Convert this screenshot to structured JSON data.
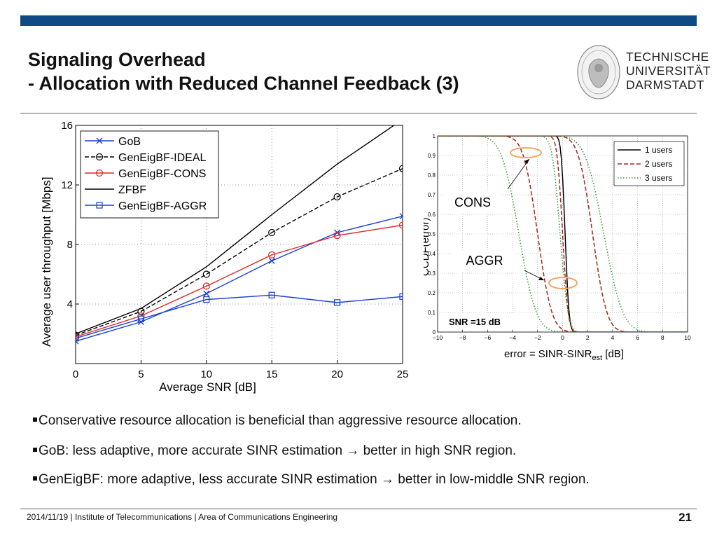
{
  "header": {
    "title_line1": "Signaling Overhead",
    "title_line2": "- Allocation with Reduced Channel Feedback (3)"
  },
  "logo": {
    "line1": "TECHNISCHE",
    "line2": "UNIVERSITÄT",
    "line3": "DARMSTADT"
  },
  "colors": {
    "brand_bar": "#0d4a86",
    "blue": "#1a3fd6",
    "red": "#e32626",
    "black": "#000000",
    "dark_red": "#b02020",
    "green": "#2a9a2a",
    "circle": "#f0a860"
  },
  "chart_data": [
    {
      "type": "line",
      "xlabel": "Average SNR [dB]",
      "ylabel": "Average user throughput [Mbps]",
      "x": [
        0,
        5,
        10,
        15,
        20,
        25
      ],
      "xticks": [
        "0",
        "5",
        "10",
        "15",
        "20",
        "25"
      ],
      "yticks": [
        "4",
        "8",
        "12",
        "16"
      ],
      "xlim": [
        0,
        25
      ],
      "ylim": [
        0,
        16
      ],
      "grid": true,
      "legend_position": "top-left",
      "series": [
        {
          "name": "GoB",
          "color": "#1a3fd6",
          "marker": "x",
          "dash": "solid",
          "values": [
            1.5,
            2.8,
            4.7,
            6.9,
            8.8,
            9.9
          ]
        },
        {
          "name": "GenEigBF-IDEAL",
          "color": "#000000",
          "marker": "o",
          "dash": "dashed",
          "values": [
            1.9,
            3.5,
            6.0,
            8.8,
            11.2,
            13.1
          ]
        },
        {
          "name": "GenEigBF-CONS",
          "color": "#e32626",
          "marker": "o",
          "dash": "solid",
          "values": [
            1.8,
            3.2,
            5.2,
            7.3,
            8.6,
            9.3
          ]
        },
        {
          "name": "ZFBF",
          "color": "#000000",
          "marker": "none",
          "dash": "solid",
          "values": [
            2.0,
            3.7,
            6.5,
            10.0,
            13.4,
            16.4
          ]
        },
        {
          "name": "GenEigBF-AGGR",
          "color": "#1a3fd6",
          "marker": "s",
          "dash": "solid",
          "values": [
            1.7,
            3.0,
            4.3,
            4.6,
            4.1,
            4.5
          ]
        }
      ]
    },
    {
      "type": "line",
      "xlabel_main": "error = SINR-SINR",
      "xlabel_sub": "est",
      "xlabel_unit": " [dB]",
      "ylabel": "CCDF(error)",
      "xticks": [
        "−10",
        "−8",
        "−6",
        "−4",
        "−2",
        "0",
        "2",
        "4",
        "6",
        "8",
        "10"
      ],
      "yticks": [
        "0",
        "0.1",
        "0.2",
        "0.3",
        "0.4",
        "0.5",
        "0.6",
        "0.7",
        "0.8",
        "0.9",
        "1"
      ],
      "xlim": [
        -10,
        10
      ],
      "ylim": [
        0,
        1
      ],
      "grid": true,
      "legend_position": "top-right",
      "annotation_snr": "SNR =15 dB",
      "annotation_cons": "CONS",
      "annotation_aggr": "AGGR",
      "series": [
        {
          "name": "1 users",
          "color": "#000000",
          "dash": "solid",
          "curves": [
            {
              "mu": 0.2,
              "s": 0.25
            }
          ]
        },
        {
          "name": "2 users",
          "color": "#b02020",
          "dash": "dashed",
          "curves": [
            {
              "mu": -2.0,
              "s": 0.9
            },
            {
              "mu": 0.0,
              "s": 0.35
            },
            {
              "mu": 2.4,
              "s": 0.9
            }
          ]
        },
        {
          "name": "3 users",
          "color": "#2a9a2a",
          "dash": "dotted",
          "curves": [
            {
              "mu": -3.5,
              "s": 1.1
            },
            {
              "mu": -0.2,
              "s": 0.5
            },
            {
              "mu": 3.3,
              "s": 1.2
            }
          ]
        }
      ]
    }
  ],
  "bullets": [
    "Conservative resource allocation is beneficial than aggressive resource allocation.",
    "GoB: less adaptive, more accurate SINR estimation → better in high SNR region.",
    "GenEigBF: more adaptive, less accurate SINR estimation → better in low-middle SNR region."
  ],
  "footer": {
    "text": "2014/11/19  |  Institute of Telecommunications   |  Area of Communications Engineering",
    "page": "21"
  }
}
